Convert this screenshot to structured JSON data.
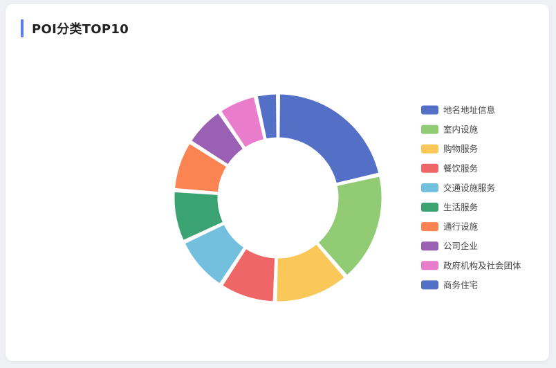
{
  "card": {
    "title": "POI分类TOP10",
    "accent_color": "#5b7cf0"
  },
  "chart_data": {
    "type": "pie",
    "subtype": "donut",
    "title": "POI分类TOP10",
    "legend_position": "right",
    "categories": [
      "地名地址信息",
      "室内设施",
      "购物服务",
      "餐饮服务",
      "交通设施服务",
      "生活服务",
      "通行设施",
      "公司企业",
      "政府机构及社会团体",
      "商务住宅"
    ],
    "values": [
      20.5,
      16.5,
      11.3,
      8.4,
      8.4,
      7.8,
      7.5,
      6.2,
      5.8,
      3.3
    ],
    "colors": [
      "#5470c6",
      "#91cc75",
      "#fac858",
      "#ee6666",
      "#73c0de",
      "#3ba272",
      "#fc8452",
      "#9a60b4",
      "#ea7ccc",
      "#5470c6"
    ]
  }
}
